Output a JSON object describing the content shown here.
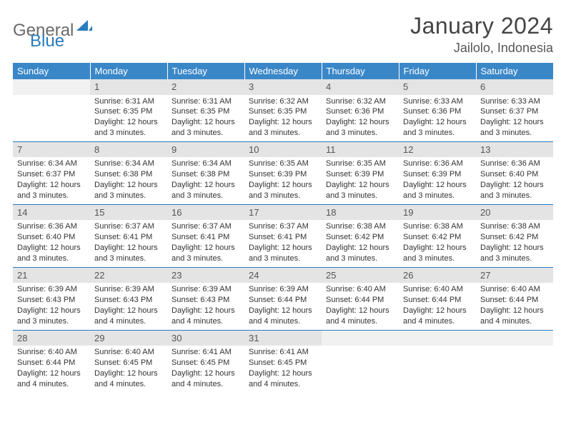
{
  "logo": {
    "general": "General",
    "blue": "Blue"
  },
  "title": "January 2024",
  "location": "Jailolo, Indonesia",
  "colors": {
    "header_bg": "#3a87c8",
    "header_text": "#ffffff",
    "daynum_bg": "#e4e4e4",
    "daynum_blank_bg": "#f1f1f1",
    "rule": "#2a7bbf",
    "logo_gray": "#6a6a6a",
    "logo_blue": "#2a7bbf"
  },
  "weekdays": [
    "Sunday",
    "Monday",
    "Tuesday",
    "Wednesday",
    "Thursday",
    "Friday",
    "Saturday"
  ],
  "weeks": [
    [
      {
        "num": "",
        "lines": []
      },
      {
        "num": "1",
        "lines": [
          "Sunrise: 6:31 AM",
          "Sunset: 6:35 PM",
          "Daylight: 12 hours and 3 minutes."
        ]
      },
      {
        "num": "2",
        "lines": [
          "Sunrise: 6:31 AM",
          "Sunset: 6:35 PM",
          "Daylight: 12 hours and 3 minutes."
        ]
      },
      {
        "num": "3",
        "lines": [
          "Sunrise: 6:32 AM",
          "Sunset: 6:35 PM",
          "Daylight: 12 hours and 3 minutes."
        ]
      },
      {
        "num": "4",
        "lines": [
          "Sunrise: 6:32 AM",
          "Sunset: 6:36 PM",
          "Daylight: 12 hours and 3 minutes."
        ]
      },
      {
        "num": "5",
        "lines": [
          "Sunrise: 6:33 AM",
          "Sunset: 6:36 PM",
          "Daylight: 12 hours and 3 minutes."
        ]
      },
      {
        "num": "6",
        "lines": [
          "Sunrise: 6:33 AM",
          "Sunset: 6:37 PM",
          "Daylight: 12 hours and 3 minutes."
        ]
      }
    ],
    [
      {
        "num": "7",
        "lines": [
          "Sunrise: 6:34 AM",
          "Sunset: 6:37 PM",
          "Daylight: 12 hours and 3 minutes."
        ]
      },
      {
        "num": "8",
        "lines": [
          "Sunrise: 6:34 AM",
          "Sunset: 6:38 PM",
          "Daylight: 12 hours and 3 minutes."
        ]
      },
      {
        "num": "9",
        "lines": [
          "Sunrise: 6:34 AM",
          "Sunset: 6:38 PM",
          "Daylight: 12 hours and 3 minutes."
        ]
      },
      {
        "num": "10",
        "lines": [
          "Sunrise: 6:35 AM",
          "Sunset: 6:39 PM",
          "Daylight: 12 hours and 3 minutes."
        ]
      },
      {
        "num": "11",
        "lines": [
          "Sunrise: 6:35 AM",
          "Sunset: 6:39 PM",
          "Daylight: 12 hours and 3 minutes."
        ]
      },
      {
        "num": "12",
        "lines": [
          "Sunrise: 6:36 AM",
          "Sunset: 6:39 PM",
          "Daylight: 12 hours and 3 minutes."
        ]
      },
      {
        "num": "13",
        "lines": [
          "Sunrise: 6:36 AM",
          "Sunset: 6:40 PM",
          "Daylight: 12 hours and 3 minutes."
        ]
      }
    ],
    [
      {
        "num": "14",
        "lines": [
          "Sunrise: 6:36 AM",
          "Sunset: 6:40 PM",
          "Daylight: 12 hours and 3 minutes."
        ]
      },
      {
        "num": "15",
        "lines": [
          "Sunrise: 6:37 AM",
          "Sunset: 6:41 PM",
          "Daylight: 12 hours and 3 minutes."
        ]
      },
      {
        "num": "16",
        "lines": [
          "Sunrise: 6:37 AM",
          "Sunset: 6:41 PM",
          "Daylight: 12 hours and 3 minutes."
        ]
      },
      {
        "num": "17",
        "lines": [
          "Sunrise: 6:37 AM",
          "Sunset: 6:41 PM",
          "Daylight: 12 hours and 3 minutes."
        ]
      },
      {
        "num": "18",
        "lines": [
          "Sunrise: 6:38 AM",
          "Sunset: 6:42 PM",
          "Daylight: 12 hours and 3 minutes."
        ]
      },
      {
        "num": "19",
        "lines": [
          "Sunrise: 6:38 AM",
          "Sunset: 6:42 PM",
          "Daylight: 12 hours and 3 minutes."
        ]
      },
      {
        "num": "20",
        "lines": [
          "Sunrise: 6:38 AM",
          "Sunset: 6:42 PM",
          "Daylight: 12 hours and 3 minutes."
        ]
      }
    ],
    [
      {
        "num": "21",
        "lines": [
          "Sunrise: 6:39 AM",
          "Sunset: 6:43 PM",
          "Daylight: 12 hours and 3 minutes."
        ]
      },
      {
        "num": "22",
        "lines": [
          "Sunrise: 6:39 AM",
          "Sunset: 6:43 PM",
          "Daylight: 12 hours and 4 minutes."
        ]
      },
      {
        "num": "23",
        "lines": [
          "Sunrise: 6:39 AM",
          "Sunset: 6:43 PM",
          "Daylight: 12 hours and 4 minutes."
        ]
      },
      {
        "num": "24",
        "lines": [
          "Sunrise: 6:39 AM",
          "Sunset: 6:44 PM",
          "Daylight: 12 hours and 4 minutes."
        ]
      },
      {
        "num": "25",
        "lines": [
          "Sunrise: 6:40 AM",
          "Sunset: 6:44 PM",
          "Daylight: 12 hours and 4 minutes."
        ]
      },
      {
        "num": "26",
        "lines": [
          "Sunrise: 6:40 AM",
          "Sunset: 6:44 PM",
          "Daylight: 12 hours and 4 minutes."
        ]
      },
      {
        "num": "27",
        "lines": [
          "Sunrise: 6:40 AM",
          "Sunset: 6:44 PM",
          "Daylight: 12 hours and 4 minutes."
        ]
      }
    ],
    [
      {
        "num": "28",
        "lines": [
          "Sunrise: 6:40 AM",
          "Sunset: 6:44 PM",
          "Daylight: 12 hours and 4 minutes."
        ]
      },
      {
        "num": "29",
        "lines": [
          "Sunrise: 6:40 AM",
          "Sunset: 6:45 PM",
          "Daylight: 12 hours and 4 minutes."
        ]
      },
      {
        "num": "30",
        "lines": [
          "Sunrise: 6:41 AM",
          "Sunset: 6:45 PM",
          "Daylight: 12 hours and 4 minutes."
        ]
      },
      {
        "num": "31",
        "lines": [
          "Sunrise: 6:41 AM",
          "Sunset: 6:45 PM",
          "Daylight: 12 hours and 4 minutes."
        ]
      },
      {
        "num": "",
        "lines": []
      },
      {
        "num": "",
        "lines": []
      },
      {
        "num": "",
        "lines": []
      }
    ]
  ]
}
